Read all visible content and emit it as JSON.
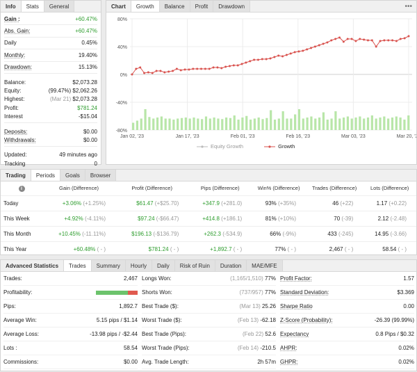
{
  "info": {
    "tabs": [
      "Info",
      "Stats",
      "General"
    ],
    "rows": [
      {
        "label": "Gain :",
        "value": "+60.47%"
      },
      {
        "label": "Abs. Gain:",
        "value": "+60.47%"
      },
      {
        "label": "Daily",
        "value": "0.45%"
      },
      {
        "label": "Monthly:",
        "value": "19.40%"
      },
      {
        "label": "Drawdown:",
        "value": "15.13%"
      },
      {
        "label": "Balance:",
        "value": "$2,073.28"
      },
      {
        "label": "Equity:",
        "note": "(99.47%)",
        "value": "$2,062.26"
      },
      {
        "label": "Highest:",
        "note": "(Mar 21)",
        "value": "$2,073.28"
      },
      {
        "label": "Profit:",
        "value": "$781.24"
      },
      {
        "label": "Interest",
        "value": "-$15.04"
      },
      {
        "label": "Deposits:",
        "value": "$0.00"
      },
      {
        "label": "Withdrawals:",
        "value": "$0.00"
      },
      {
        "label": "Updated:",
        "value": "49 minutes ago"
      },
      {
        "label": "Tracking",
        "value": "0"
      }
    ]
  },
  "chart": {
    "tabs": [
      "Chart",
      "Growth",
      "Balance",
      "Profit",
      "Drawdown"
    ],
    "menu_icon": "more-dots-icon",
    "legend": [
      "Equity Growth",
      "Growth"
    ]
  },
  "chart_data": {
    "type": "line",
    "x_ticks": [
      "Jan 02, '23",
      "Jan 17, '23",
      "Feb 01, '23",
      "Feb 16, '23",
      "Mar 03, '23",
      "Mar 20, '23"
    ],
    "y_ticks": [
      "80%",
      "40%",
      "0%",
      "-40%",
      "-80%"
    ],
    "ylim": [
      -80,
      80
    ],
    "series": [
      {
        "name": "Growth",
        "color": "#d9534f",
        "values": [
          0,
          8,
          10,
          2,
          3,
          2,
          5,
          5,
          3,
          4,
          5,
          8,
          6,
          7,
          7,
          8,
          8,
          8,
          8,
          8,
          10,
          10,
          9,
          11,
          12,
          13,
          13,
          15,
          17,
          19,
          21,
          21,
          22,
          22,
          23,
          25,
          27,
          26,
          28,
          30,
          32,
          33,
          34,
          36,
          38,
          40,
          42,
          44,
          46,
          49,
          51,
          53,
          47,
          51,
          51,
          48,
          51,
          50,
          49,
          49,
          40,
          48,
          49,
          49,
          49,
          48,
          51,
          52,
          55
        ]
      },
      {
        "name": "Equity Growth",
        "color": "#aaaaaa",
        "values": []
      }
    ],
    "bars": [
      14,
      18,
      22,
      40,
      25,
      22,
      24,
      26,
      22,
      22,
      20,
      22,
      23,
      24,
      22,
      24,
      22,
      21,
      26,
      22,
      24,
      22,
      21,
      24,
      23,
      28,
      20,
      24,
      27,
      20,
      22,
      24,
      21,
      23,
      38,
      20,
      22,
      36,
      22,
      22,
      30,
      40,
      22,
      24,
      26,
      22,
      24,
      34,
      20,
      22,
      36,
      22,
      24,
      26,
      22,
      24,
      26,
      22,
      24,
      28,
      22,
      24,
      26,
      22,
      24,
      26,
      24,
      20,
      28
    ]
  },
  "trading": {
    "tabs": [
      "Trading",
      "Periods",
      "Goals",
      "Browser"
    ],
    "headers": [
      "Gain (Difference)",
      "Profit (Difference)",
      "Pips (Difference)",
      "Win% (Difference)",
      "Trades (Difference)",
      "Lots (Difference)"
    ],
    "rows": [
      {
        "period": "Today",
        "gain": "+3.06%",
        "gain_d": "(+1.25%)",
        "profit": "$61.47",
        "profit_d": "(+$25.70)",
        "pips": "+347.9",
        "pips_d": "(+281.0)",
        "win": "93%",
        "win_d": "(+35%)",
        "trades": "46",
        "trades_d": "(+22)",
        "lots": "1.17",
        "lots_d": "(+0.22)"
      },
      {
        "period": "This Week",
        "gain": "+4.92%",
        "gain_d": "(-4.11%)",
        "profit": "$97.24",
        "profit_d": "(-$66.47)",
        "pips": "+414.8",
        "pips_d": "(+186.1)",
        "win": "81%",
        "win_d": "(+10%)",
        "trades": "70",
        "trades_d": "(-39)",
        "lots": "2.12",
        "lots_d": "(-2.48)"
      },
      {
        "period": "This Month",
        "gain": "+10.45%",
        "gain_d": "(-11.11%)",
        "profit": "$196.13",
        "profit_d": "(-$136.79)",
        "pips": "+262.3",
        "pips_d": "(-534.9)",
        "win": "66%",
        "win_d": "(-9%)",
        "trades": "433",
        "trades_d": "(-245)",
        "lots": "14.95",
        "lots_d": "(-3.66)"
      },
      {
        "period": "This Year",
        "gain": "+60.48%",
        "gain_d": "( - )",
        "profit": "$781.24",
        "profit_d": "( - )",
        "pips": "+1,892.7",
        "pips_d": "( - )",
        "win": "77%",
        "win_d": "( - )",
        "trades": "2,467",
        "trades_d": "( - )",
        "lots": "58.54",
        "lots_d": "( - )"
      }
    ]
  },
  "advanced": {
    "tabs": [
      "Advanced Statistics",
      "Trades",
      "Summary",
      "Hourly",
      "Daily",
      "Risk of Ruin",
      "Duration",
      "MAE/MFE"
    ],
    "col1": [
      {
        "label": "Trades:",
        "value": "2,467"
      },
      {
        "label": "Profitability:",
        "value": ""
      },
      {
        "label": "Pips:",
        "value": "1,892.7"
      },
      {
        "label": "Average Win:",
        "value": "5.15 pips / $1.14"
      },
      {
        "label": "Average Loss:",
        "value": "-13.98 pips / -$2.44"
      },
      {
        "label": "Lots :",
        "value": "58.54"
      },
      {
        "label": "Commissions:",
        "value": "$0.00"
      }
    ],
    "col2": [
      {
        "label": "Longs Won:",
        "note": "(1,165/1,510)",
        "value": "77%"
      },
      {
        "label": "Shorts Won:",
        "note": "(737/957)",
        "value": "77%"
      },
      {
        "label": "Best Trade ($):",
        "note": "(Mar 13)",
        "value": "25.26"
      },
      {
        "label": "Worst Trade ($):",
        "note": "(Feb 13)",
        "value": "-62.18"
      },
      {
        "label": "Best Trade (Pips):",
        "note": "(Feb 22)",
        "value": "52.6"
      },
      {
        "label": "Worst Trade (Pips):",
        "note": "(Feb 14)",
        "value": "-210.5"
      },
      {
        "label": "Avg. Trade Length:",
        "note": "",
        "value": "2h 57m"
      }
    ],
    "col3": [
      {
        "label": "Profit Factor:",
        "value": "1.57"
      },
      {
        "label": "Standard Deviation:",
        "value": "$3.369"
      },
      {
        "label": "Sharpe Ratio",
        "value": "0.00"
      },
      {
        "label": "Z-Score (Probability):",
        "value": "-26.39 (99.99%)"
      },
      {
        "label": "Expectancy",
        "value": "0.8 Pips / $0.32"
      },
      {
        "label": "AHPR:",
        "value": "0.02%"
      },
      {
        "label": "GHPR:",
        "value": "0.02%"
      }
    ],
    "profitability_win_fraction": 0.77
  }
}
